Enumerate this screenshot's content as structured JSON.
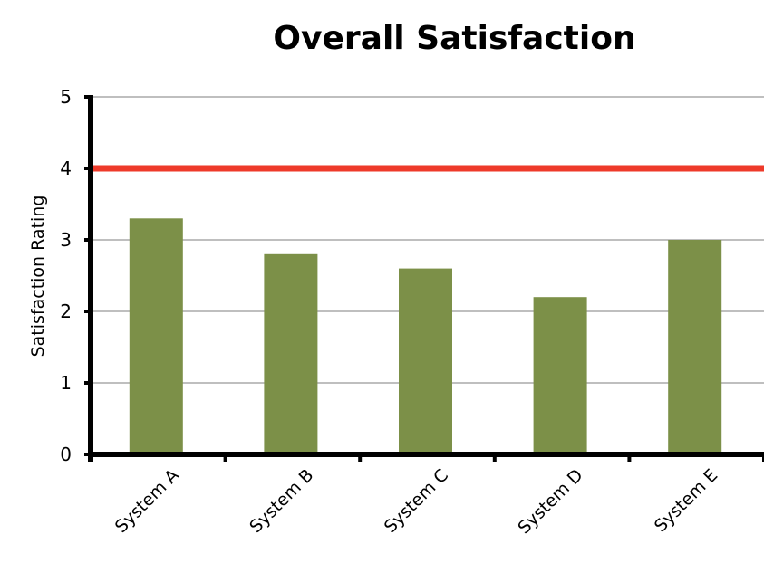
{
  "chart_data": {
    "type": "bar",
    "title": "Overall Satisfaction",
    "xlabel": "",
    "ylabel": "Satisfaction Rating",
    "categories": [
      "System A",
      "System B",
      "System C",
      "System D",
      "System E"
    ],
    "values": [
      3.3,
      2.8,
      2.6,
      2.2,
      3.0
    ],
    "ylim": [
      0,
      5
    ],
    "yticks": [
      0,
      1,
      2,
      3,
      4,
      5
    ],
    "reference_line": {
      "value": 4,
      "color": "#ee3a2a"
    },
    "bar_color": "#7c9048",
    "grid": true,
    "grid_color": "#999999",
    "legend": "none"
  }
}
